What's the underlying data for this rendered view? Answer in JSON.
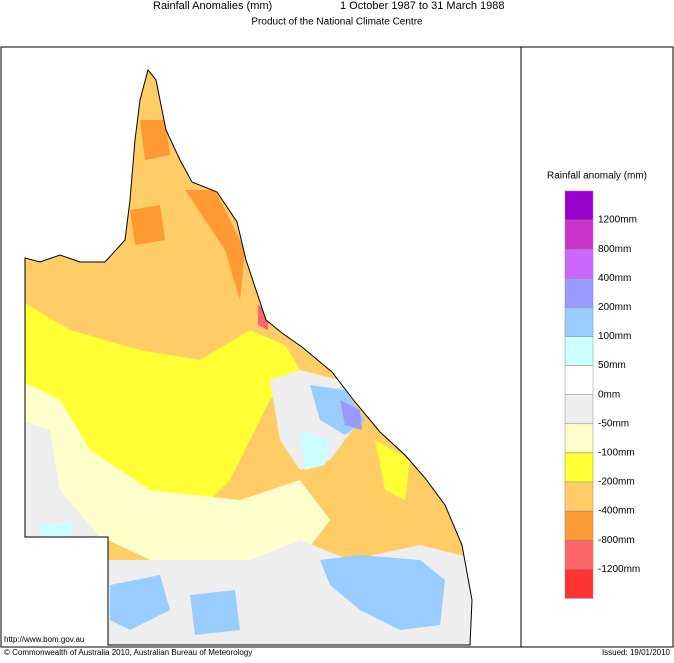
{
  "header": {
    "title": "Rainfall Anomalies (mm)",
    "period": "1 October 1987 to 31 March 1988",
    "subtitle": "Product of the National Climate Centre"
  },
  "legend": {
    "title": "Rainfall anomaly (mm)",
    "colors": [
      "#9900cc",
      "#cc33cc",
      "#cc66ff",
      "#9999ff",
      "#99ccff",
      "#ccffff",
      "#ffffff",
      "#eeeeee",
      "#ffffcc",
      "#ffff33",
      "#ffcc66",
      "#ff9933",
      "#ff6666",
      "#ff3333"
    ],
    "labels": [
      "1200mm",
      "800mm",
      "400mm",
      "200mm",
      "100mm",
      "50mm",
      "0mm",
      "-50mm",
      "-100mm",
      "-200mm",
      "-400mm",
      "-800mm",
      "-1200mm"
    ]
  },
  "footer": {
    "url": "http://www.bom.gov.au",
    "copyright": "© Commonwealth of Australia 2010, Australian Bureau of Meteorology",
    "issued": "Issued: 19/01/2010"
  }
}
